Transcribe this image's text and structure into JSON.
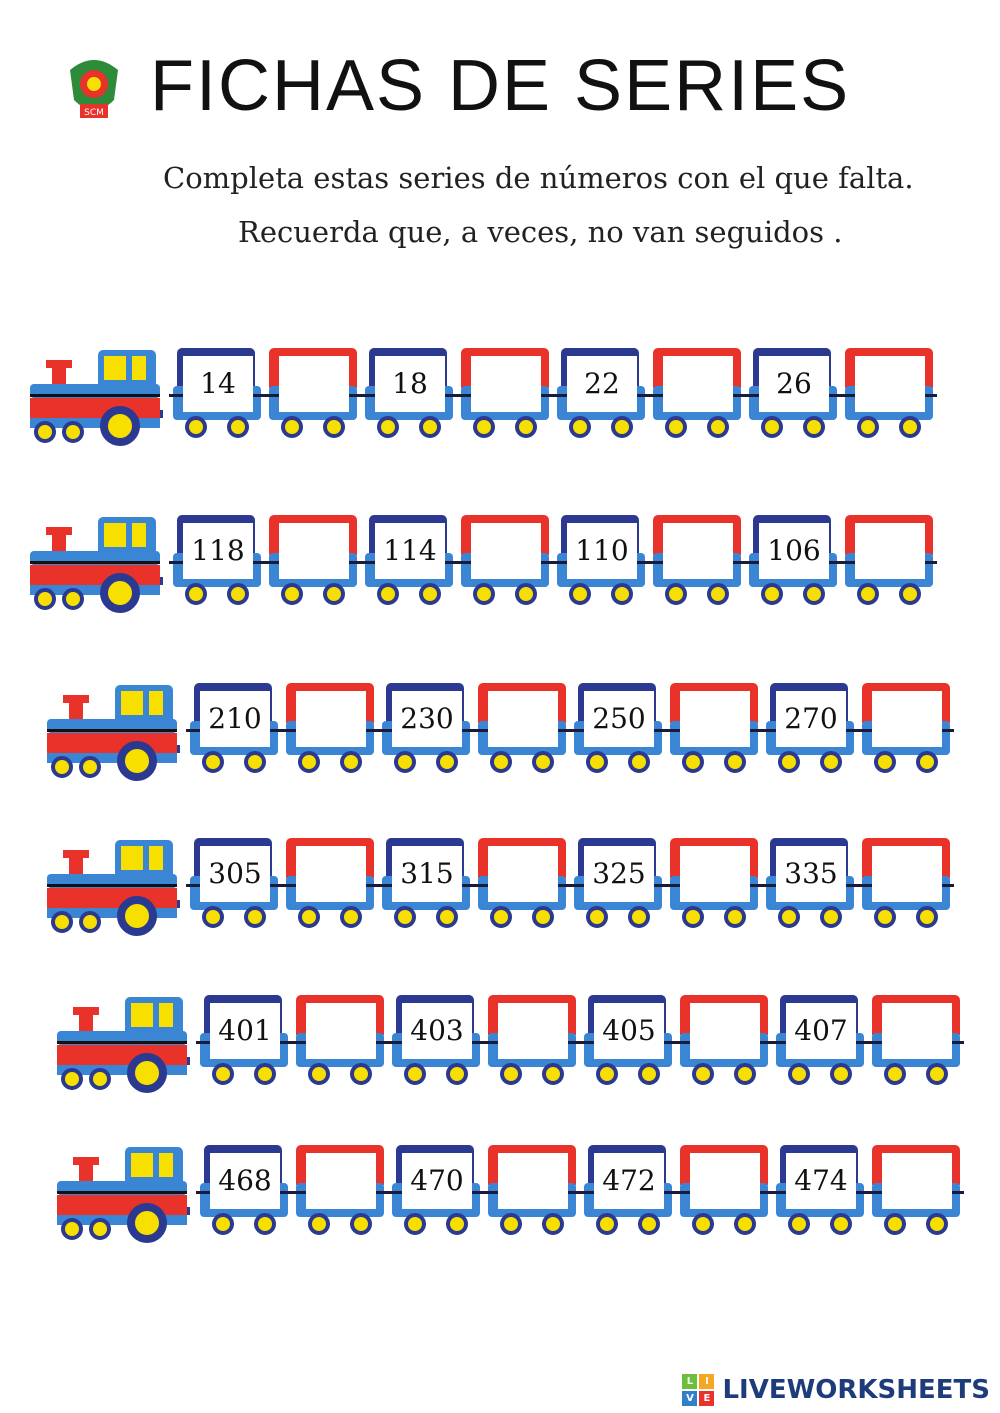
{
  "header": {
    "title": "FICHAS DE SERIES",
    "logo_text": "SCM",
    "instruction_1": "Completa estas series de números con el que falta.",
    "instruction_2": "Recuerda que, a veces, no van seguidos ."
  },
  "colors": {
    "blue_car": "#2b3990",
    "red_car": "#e8322a",
    "base": "#3b86d4",
    "wheel": "#f7e000"
  },
  "trains": [
    {
      "cars": [
        "14",
        "",
        "18",
        "",
        "22",
        "",
        "26",
        ""
      ]
    },
    {
      "cars": [
        "118",
        "",
        "114",
        "",
        "110",
        "",
        "106",
        ""
      ]
    },
    {
      "cars": [
        "210",
        "",
        "230",
        "",
        "250",
        "",
        "270",
        ""
      ]
    },
    {
      "cars": [
        "305",
        "",
        "315",
        "",
        "325",
        "",
        "335",
        ""
      ]
    },
    {
      "cars": [
        "401",
        "",
        "403",
        "",
        "405",
        "",
        "407",
        ""
      ]
    },
    {
      "cars": [
        "468",
        "",
        "470",
        "",
        "472",
        "",
        "474",
        ""
      ]
    }
  ],
  "footer": {
    "brand": "LIVEWORKSHEETS",
    "brand_icon_letters": [
      "L",
      "I",
      "V",
      "E"
    ]
  }
}
